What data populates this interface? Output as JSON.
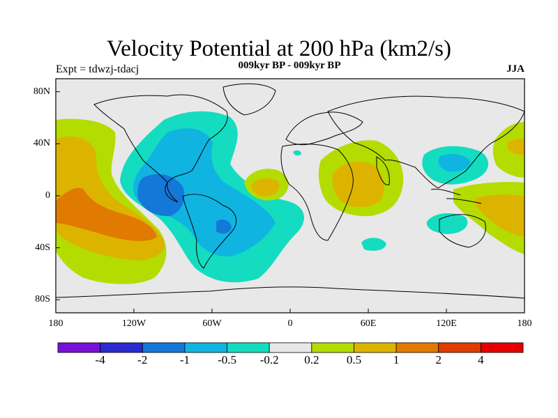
{
  "title": "Velocity Potential at 200 hPa (km2/s)",
  "subtitle_left": "Expt = tdwzj-tdacj",
  "subtitle_center": "009kyr BP - 009kyr BP",
  "subtitle_right": "JJA",
  "lat_labels": [
    "80N",
    "40N",
    "0",
    "40S",
    "80S"
  ],
  "lon_labels": [
    "180",
    "120W",
    "60W",
    "0",
    "60E",
    "120E",
    "180"
  ],
  "colorbar": {
    "labels": [
      "-4",
      "-2",
      "-1",
      "-0.5",
      "-0.2",
      "0.2",
      "0.5",
      "1",
      "2",
      "4"
    ],
    "colors": [
      "#7a10d8",
      "#2a2ad0",
      "#1478d8",
      "#10b4e0",
      "#14dcc0",
      "#e8e8e8",
      "#b4dc00",
      "#dcb400",
      "#e07a00",
      "#e03c00",
      "#e60000"
    ]
  },
  "map_colors": {
    "ocean": "#e8e8e8",
    "pos_weak": "#b4dc00",
    "pos_mid": "#dcb400",
    "pos_strong": "#e07a00",
    "neg_weak": "#14dcc0",
    "neg_mid": "#10b4e0",
    "neg_strong": "#1478d8"
  }
}
